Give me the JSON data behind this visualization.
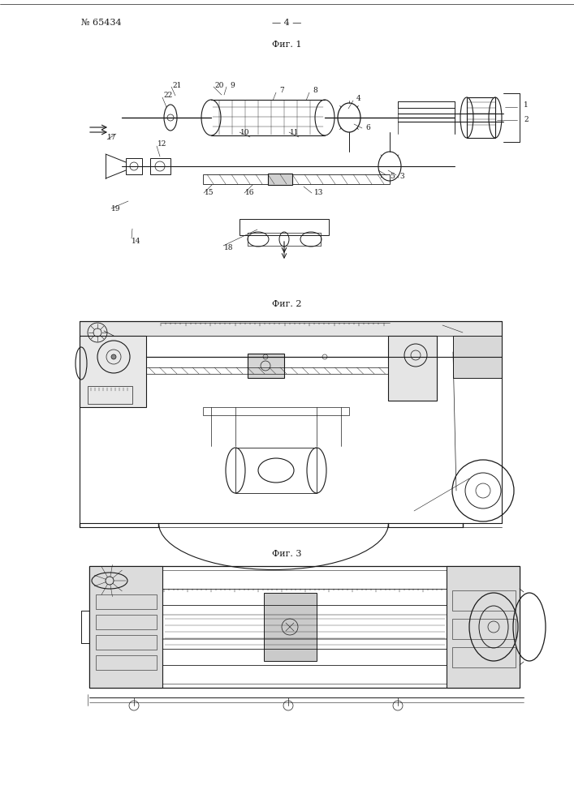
{
  "title_number": "№ 65434",
  "title_page": "— 4 —",
  "fig1_label": "Фиг. 1",
  "fig2_label": "Фиг. 2",
  "fig3_label": "Фиг. 3",
  "bg_color": "#ffffff",
  "line_color": "#1a1a1a",
  "fig_width": 7.07,
  "fig_height": 10.0,
  "dpi": 100
}
